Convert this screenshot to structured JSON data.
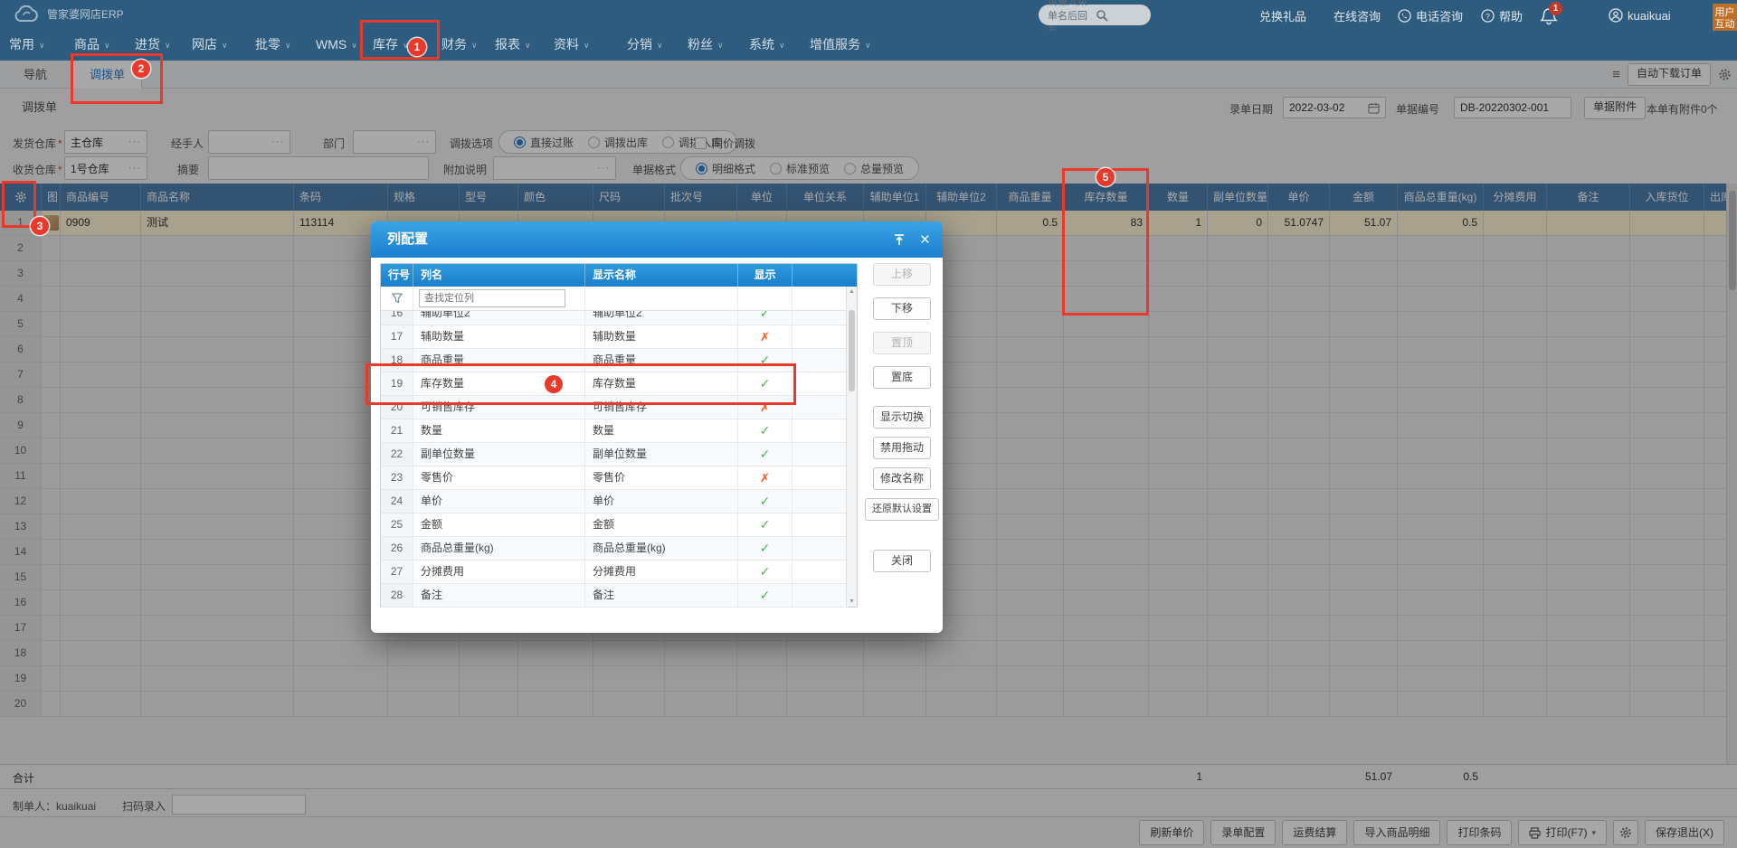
{
  "topbar": {
    "logo_text": "管家婆网店ERP",
    "search_placeholder": "请输入菜单名后回车",
    "links": [
      "兑换礼品",
      "在线咨询",
      "电话咨询",
      "帮助"
    ],
    "notification_badge": "1",
    "username": "kuaikuai",
    "feedback_tab": "用户互动"
  },
  "menu": {
    "items": [
      "常用",
      "商品",
      "进货",
      "网店",
      "批零",
      "WMS",
      "库存",
      "财务",
      "报表",
      "资料",
      "分销",
      "粉丝",
      "系统",
      "增值服务"
    ]
  },
  "tabbar": {
    "nav_tab": "导航",
    "active_tab": "调拨单",
    "auto_download_button": "自动下载订单"
  },
  "doc_header": {
    "page_title": "调拨单",
    "date_label": "录单日期",
    "date_value": "2022-03-02",
    "number_label": "单据编号",
    "number_value": "DB-20220302-001",
    "attachment_button": "单据附件",
    "attachment_info": "本单有附件0个"
  },
  "form": {
    "out_warehouse_label": "发货仓库",
    "out_warehouse_value": "主仓库",
    "handler_label": "经手人",
    "department_label": "部门",
    "transfer_option_label": "调拨选项",
    "transfer_options": [
      "直接过账",
      "调拨出库",
      "调拨入库"
    ],
    "transfer_selected": "直接过账",
    "same_price_checkbox": "同价调拨",
    "in_warehouse_label": "收货仓库",
    "in_warehouse_value": "1号仓库",
    "summary_label": "摘要",
    "note_label": "附加说明",
    "format_label": "单据格式",
    "format_options": [
      "明细格式",
      "标准预览",
      "总量预览"
    ],
    "format_selected": "明细格式"
  },
  "grid": {
    "headers": [
      "",
      "图",
      "商品编号",
      "商品名称",
      "条码",
      "规格",
      "型号",
      "颜色",
      "尺码",
      "批次号",
      "单位",
      "单位关系",
      "辅助单位1",
      "辅助单位2",
      "商品重量",
      "库存数量",
      "数量",
      "副单位数量",
      "单价",
      "金额",
      "商品总重量(kg)",
      "分摊费用",
      "备注",
      "入库货位",
      "出库货位"
    ],
    "row1": [
      "1",
      "",
      "0909",
      "测试",
      "113114",
      "",
      "",
      "",
      "",
      "",
      "",
      "",
      "",
      "",
      "0.5",
      "83",
      "1",
      "0",
      "51.0747",
      "51.07",
      "0.5",
      "",
      "",
      "",
      ""
    ],
    "empty_row_count": 19,
    "total_label": "合计",
    "totals": {
      "qty": "1",
      "amount": "51.07",
      "total_weight": "0.5"
    }
  },
  "modal": {
    "title": "列配置",
    "columns": [
      "行号",
      "列名",
      "显示名称",
      "显示"
    ],
    "filter_placeholder": "查找定位列",
    "rows": [
      {
        "no": "16",
        "name": "辅助单位2",
        "display": "辅助单位2",
        "visible": true,
        "partial": true
      },
      {
        "no": "17",
        "name": "辅助数量",
        "display": "辅助数量",
        "visible": false
      },
      {
        "no": "18",
        "name": "商品重量",
        "display": "商品重量",
        "visible": true
      },
      {
        "no": "19",
        "name": "库存数量",
        "display": "库存数量",
        "visible": true
      },
      {
        "no": "20",
        "name": "可销售库存",
        "display": "可销售库存",
        "visible": false
      },
      {
        "no": "21",
        "name": "数量",
        "display": "数量",
        "visible": true
      },
      {
        "no": "22",
        "name": "副单位数量",
        "display": "副单位数量",
        "visible": true
      },
      {
        "no": "23",
        "name": "零售价",
        "display": "零售价",
        "visible": false
      },
      {
        "no": "24",
        "name": "单价",
        "display": "单价",
        "visible": true
      },
      {
        "no": "25",
        "name": "金额",
        "display": "金额",
        "visible": true
      },
      {
        "no": "26",
        "name": "商品总重量(kg)",
        "display": "商品总重量(kg)",
        "visible": true
      },
      {
        "no": "27",
        "name": "分摊费用",
        "display": "分摊费用",
        "visible": true
      },
      {
        "no": "28",
        "name": "备注",
        "display": "备注",
        "visible": true
      }
    ],
    "buttons": [
      {
        "label": "上移",
        "disabled": true
      },
      {
        "label": "下移",
        "disabled": false
      },
      {
        "label": "置顶",
        "disabled": true
      },
      {
        "label": "置底",
        "disabled": false
      },
      {
        "label": "显示切换",
        "disabled": false
      },
      {
        "label": "禁用拖动",
        "disabled": false
      },
      {
        "label": "修改名称",
        "disabled": false
      },
      {
        "label": "还原默认设置",
        "disabled": false,
        "wide": true
      },
      {
        "label": "关闭",
        "disabled": false
      }
    ]
  },
  "footer": {
    "maker_label": "制单人：",
    "maker_value": "kuaikuai",
    "scan_label": "扫码录入",
    "action_buttons": [
      "刷新单价",
      "录单配置",
      "运费结算",
      "导入商品明细",
      "打印条码"
    ],
    "print_button": "打印(F7)",
    "save_exit_button": "保存退出(X)"
  },
  "annotations": {
    "badges": [
      "1",
      "2",
      "3",
      "4",
      "5"
    ]
  }
}
